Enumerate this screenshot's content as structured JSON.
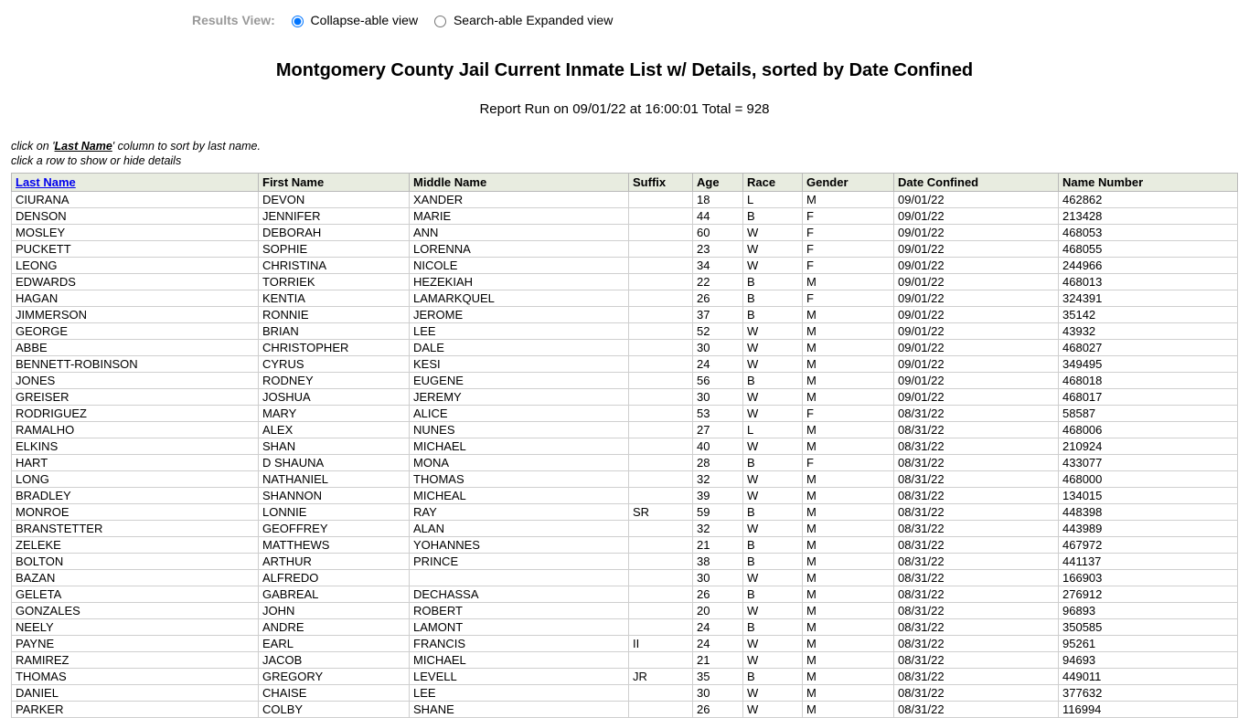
{
  "viewControls": {
    "label": "Results View:",
    "options": [
      {
        "label": "Collapse-able view",
        "checked": true
      },
      {
        "label": "Search-able Expanded view",
        "checked": false
      }
    ]
  },
  "title": "Montgomery County Jail Current Inmate List w/ Details, sorted by Date Confined",
  "reportLine": "Report Run on 09/01/22 at 16:00:01 Total = 928",
  "hints": {
    "line1_pre": "click on '",
    "line1_link": "Last Name",
    "line1_post": "' column to sort by last name.",
    "line2": "click a row to show or hide details"
  },
  "table": {
    "columns": [
      {
        "key": "last",
        "label": "Last Name",
        "link": true,
        "class": "col-last"
      },
      {
        "key": "first",
        "label": "First Name",
        "link": false,
        "class": "col-first"
      },
      {
        "key": "middle",
        "label": "Middle Name",
        "link": false,
        "class": "col-middle"
      },
      {
        "key": "suffix",
        "label": "Suffix",
        "link": false,
        "class": "col-suffix"
      },
      {
        "key": "age",
        "label": "Age",
        "link": false,
        "class": "col-age"
      },
      {
        "key": "race",
        "label": "Race",
        "link": false,
        "class": "col-race"
      },
      {
        "key": "gender",
        "label": "Gender",
        "link": false,
        "class": "col-gender"
      },
      {
        "key": "date",
        "label": "Date Confined",
        "link": false,
        "class": "col-date"
      },
      {
        "key": "num",
        "label": "Name Number",
        "link": false,
        "class": "col-num"
      }
    ],
    "rows": [
      [
        "CIURANA",
        "DEVON",
        "XANDER",
        "",
        "18",
        "L",
        "M",
        "09/01/22",
        "462862"
      ],
      [
        "DENSON",
        "JENNIFER",
        "MARIE",
        "",
        "44",
        "B",
        "F",
        "09/01/22",
        "213428"
      ],
      [
        "MOSLEY",
        "DEBORAH",
        "ANN",
        "",
        "60",
        "W",
        "F",
        "09/01/22",
        "468053"
      ],
      [
        "PUCKETT",
        "SOPHIE",
        "LORENNA",
        "",
        "23",
        "W",
        "F",
        "09/01/22",
        "468055"
      ],
      [
        "LEONG",
        "CHRISTINA",
        "NICOLE",
        "",
        "34",
        "W",
        "F",
        "09/01/22",
        "244966"
      ],
      [
        "EDWARDS",
        "TORRIEK",
        "HEZEKIAH",
        "",
        "22",
        "B",
        "M",
        "09/01/22",
        "468013"
      ],
      [
        "HAGAN",
        "KENTIA",
        "LAMARKQUEL",
        "",
        "26",
        "B",
        "F",
        "09/01/22",
        "324391"
      ],
      [
        "JIMMERSON",
        "RONNIE",
        "JEROME",
        "",
        "37",
        "B",
        "M",
        "09/01/22",
        "35142"
      ],
      [
        "GEORGE",
        "BRIAN",
        "LEE",
        "",
        "52",
        "W",
        "M",
        "09/01/22",
        "43932"
      ],
      [
        "ABBE",
        "CHRISTOPHER",
        "DALE",
        "",
        "30",
        "W",
        "M",
        "09/01/22",
        "468027"
      ],
      [
        "BENNETT-ROBINSON",
        "CYRUS",
        "KESI",
        "",
        "24",
        "W",
        "M",
        "09/01/22",
        "349495"
      ],
      [
        "JONES",
        "RODNEY",
        "EUGENE",
        "",
        "56",
        "B",
        "M",
        "09/01/22",
        "468018"
      ],
      [
        "GREISER",
        "JOSHUA",
        "JEREMY",
        "",
        "30",
        "W",
        "M",
        "09/01/22",
        "468017"
      ],
      [
        "RODRIGUEZ",
        "MARY",
        "ALICE",
        "",
        "53",
        "W",
        "F",
        "08/31/22",
        "58587"
      ],
      [
        "RAMALHO",
        "ALEX",
        "NUNES",
        "",
        "27",
        "L",
        "M",
        "08/31/22",
        "468006"
      ],
      [
        "ELKINS",
        "SHAN",
        "MICHAEL",
        "",
        "40",
        "W",
        "M",
        "08/31/22",
        "210924"
      ],
      [
        "HART",
        "D SHAUNA",
        "MONA",
        "",
        "28",
        "B",
        "F",
        "08/31/22",
        "433077"
      ],
      [
        "LONG",
        "NATHANIEL",
        "THOMAS",
        "",
        "32",
        "W",
        "M",
        "08/31/22",
        "468000"
      ],
      [
        "BRADLEY",
        "SHANNON",
        "MICHEAL",
        "",
        "39",
        "W",
        "M",
        "08/31/22",
        "134015"
      ],
      [
        "MONROE",
        "LONNIE",
        "RAY",
        "SR",
        "59",
        "B",
        "M",
        "08/31/22",
        "448398"
      ],
      [
        "BRANSTETTER",
        "GEOFFREY",
        "ALAN",
        "",
        "32",
        "W",
        "M",
        "08/31/22",
        "443989"
      ],
      [
        "ZELEKE",
        "MATTHEWS",
        "YOHANNES",
        "",
        "21",
        "B",
        "M",
        "08/31/22",
        "467972"
      ],
      [
        "BOLTON",
        "ARTHUR",
        "PRINCE",
        "",
        "38",
        "B",
        "M",
        "08/31/22",
        "441137"
      ],
      [
        "BAZAN",
        "ALFREDO",
        "",
        "",
        "30",
        "W",
        "M",
        "08/31/22",
        "166903"
      ],
      [
        "GELETA",
        "GABREAL",
        "DECHASSA",
        "",
        "26",
        "B",
        "M",
        "08/31/22",
        "276912"
      ],
      [
        "GONZALES",
        "JOHN",
        "ROBERT",
        "",
        "20",
        "W",
        "M",
        "08/31/22",
        "96893"
      ],
      [
        "NEELY",
        "ANDRE",
        "LAMONT",
        "",
        "24",
        "B",
        "M",
        "08/31/22",
        "350585"
      ],
      [
        "PAYNE",
        "EARL",
        "FRANCIS",
        "II",
        "24",
        "W",
        "M",
        "08/31/22",
        "95261"
      ],
      [
        "RAMIREZ",
        "JACOB",
        "MICHAEL",
        "",
        "21",
        "W",
        "M",
        "08/31/22",
        "94693"
      ],
      [
        "THOMAS",
        "GREGORY",
        "LEVELL",
        "JR",
        "35",
        "B",
        "M",
        "08/31/22",
        "449011"
      ],
      [
        "DANIEL",
        "CHAISE",
        "LEE",
        "",
        "30",
        "W",
        "M",
        "08/31/22",
        "377632"
      ],
      [
        "PARKER",
        "COLBY",
        "SHANE",
        "",
        "26",
        "W",
        "M",
        "08/31/22",
        "116994"
      ]
    ]
  },
  "colors": {
    "header_bg": "#e8ece0",
    "border": "#b9b9b9",
    "cell_border": "#cfcfcf",
    "link": "#0000ee",
    "muted": "#999999"
  }
}
